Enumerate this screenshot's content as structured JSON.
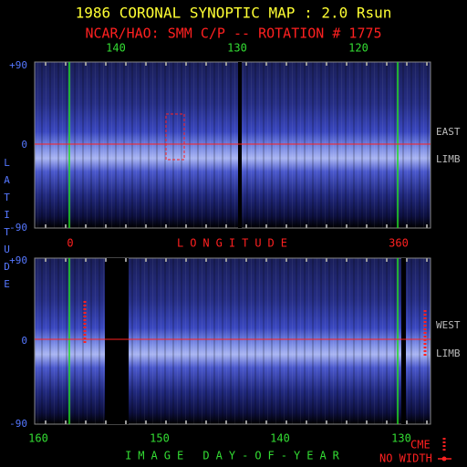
{
  "header": {
    "title": "1986 CORONAL SYNOPTIC MAP : 2.0 Rsun",
    "subtitle": "NCAR/HAO: SMM C/P -- ROTATION # 1775"
  },
  "top_panel": {
    "top_ticks": [
      "140",
      "130",
      "120"
    ],
    "lat_ticks": [
      "+90",
      "0",
      "-90"
    ],
    "limb_label": [
      "EAST",
      "LIMB"
    ],
    "bottom_ticks": [
      "0",
      "360"
    ],
    "axis_label": "LONGITUDE"
  },
  "bottom_panel": {
    "lat_ticks": [
      "+90",
      "0",
      "-90"
    ],
    "limb_label": [
      "WEST",
      "LIMB"
    ],
    "bottom_ticks": [
      "160",
      "150",
      "140",
      "130"
    ],
    "axis_label": "IMAGE DAY-OF-YEAR"
  },
  "side_label": "LATITUDE",
  "legend": {
    "cme": "CME",
    "no_width": "NO WIDTH"
  }
}
